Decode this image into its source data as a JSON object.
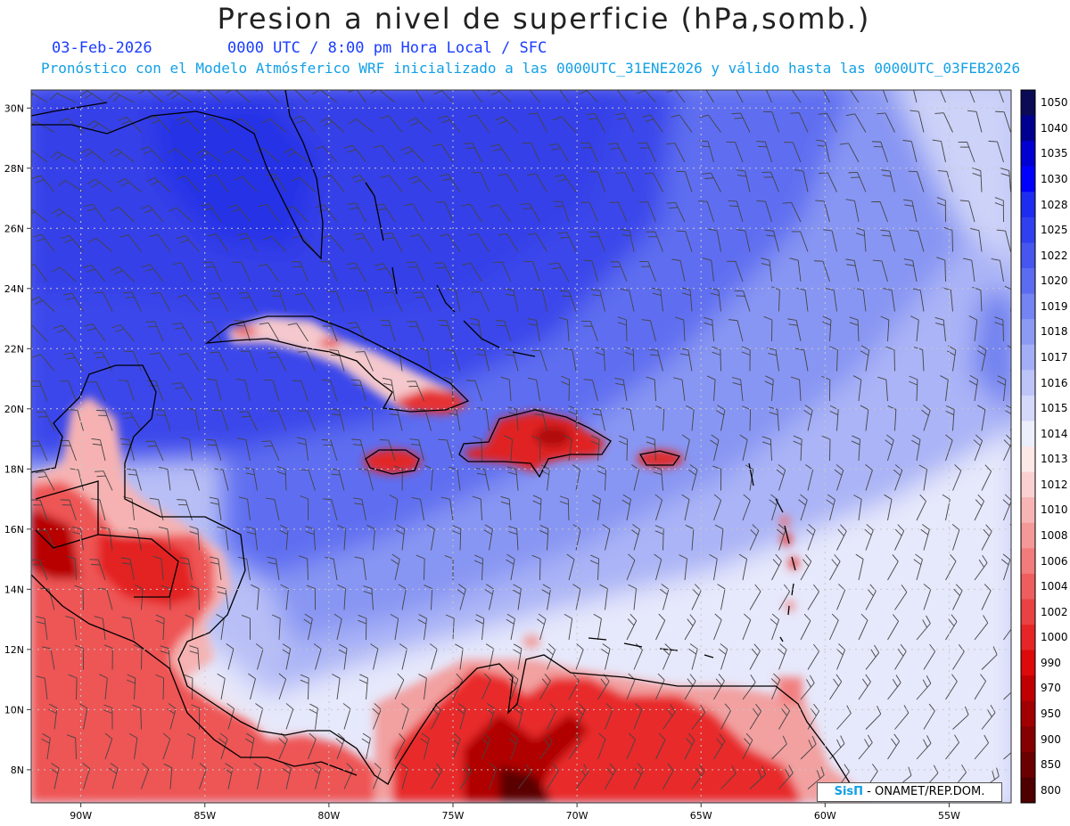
{
  "header": {
    "title": "Presion a nivel de superficie (hPa,somb.)",
    "date": "03-Feb-2026",
    "time": "0000 UTC / 8:00 pm Hora Local / SFC",
    "forecast": "Pronóstico con el Modelo Atmósferico WRF inicializado a las 0000UTC_31ENE2026 y válido hasta las  0000UTC_03FEB2026"
  },
  "axes": {
    "lat_labels": [
      "30N",
      "28N",
      "26N",
      "24N",
      "22N",
      "20N",
      "18N",
      "16N",
      "14N",
      "12N",
      "10N",
      "8N"
    ],
    "lon_labels": [
      "90W",
      "85W",
      "80W",
      "75W",
      "70W",
      "65W",
      "60W",
      "55W"
    ]
  },
  "colorbar": {
    "levels": [
      "1050",
      "1040",
      "1035",
      "1030",
      "1028",
      "1025",
      "1022",
      "1020",
      "1019",
      "1018",
      "1017",
      "1016",
      "1015",
      "1014",
      "1013",
      "1012",
      "1010",
      "1008",
      "1006",
      "1004",
      "1002",
      "1000",
      "990",
      "970",
      "950",
      "900",
      "850",
      "800"
    ],
    "colors": [
      "#0a0a55",
      "#000090",
      "#0000d0",
      "#0000ff",
      "#1e2cf0",
      "#3040ee",
      "#4656ee",
      "#5c6cf0",
      "#7484f2",
      "#8c9af4",
      "#a4aef6",
      "#bcc4f8",
      "#d4d8fa",
      "#eceefc",
      "#fde8e8",
      "#fbd0d0",
      "#f8b4b4",
      "#f59898",
      "#f27c7c",
      "#ee5e5e",
      "#ea4242",
      "#e62626",
      "#dc0a0a",
      "#c00000",
      "#a00000",
      "#850000",
      "#6a0000",
      "#4e0000"
    ]
  },
  "credit": {
    "brand": "SisΠ",
    "text": "- ONAMET/REP.DOM."
  },
  "map_region": {
    "lon_min": -92,
    "lon_max": -52.5,
    "lat_min": 6.9,
    "lat_max": 30.6
  }
}
